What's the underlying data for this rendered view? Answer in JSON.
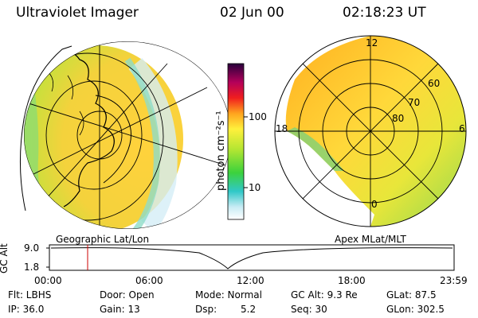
{
  "header": {
    "instrument": "Ultraviolet Imager",
    "date": "02 Jun 00",
    "time": "02:18:23 UT"
  },
  "colorbar": {
    "unit_label": "photon cm⁻²s⁻¹",
    "ticks": [
      "100",
      "10"
    ]
  },
  "polar_plot": {
    "mlt_labels": {
      "top": "12",
      "left": "18",
      "right": "6",
      "bottom": "0"
    },
    "lat_labels": [
      "60",
      "70",
      "80"
    ]
  },
  "panels": {
    "left_caption": "Geographic Lat/Lon",
    "right_caption": "Apex MLat/MLT"
  },
  "altitude_plot": {
    "ylabel": "GC Alt",
    "yticks": [
      "9.0",
      "1.8"
    ],
    "xticks": [
      "00:00",
      "06:00",
      "12:00",
      "18:00",
      "23:59"
    ],
    "marker_color": "#cc0000"
  },
  "info": {
    "flt": "Flt: LBHS",
    "ip": "IP: 36.0",
    "door": "Door: Open",
    "gain": "Gain: 13",
    "mode": "Mode: Normal",
    "dsp": "Dsp:",
    "dsp_value": "5.2",
    "gc_alt": "GC Alt: 9.3 Re",
    "seq": "Seq: 30",
    "glat": "GLat: 87.5",
    "glon": "GLon: 302.5"
  }
}
